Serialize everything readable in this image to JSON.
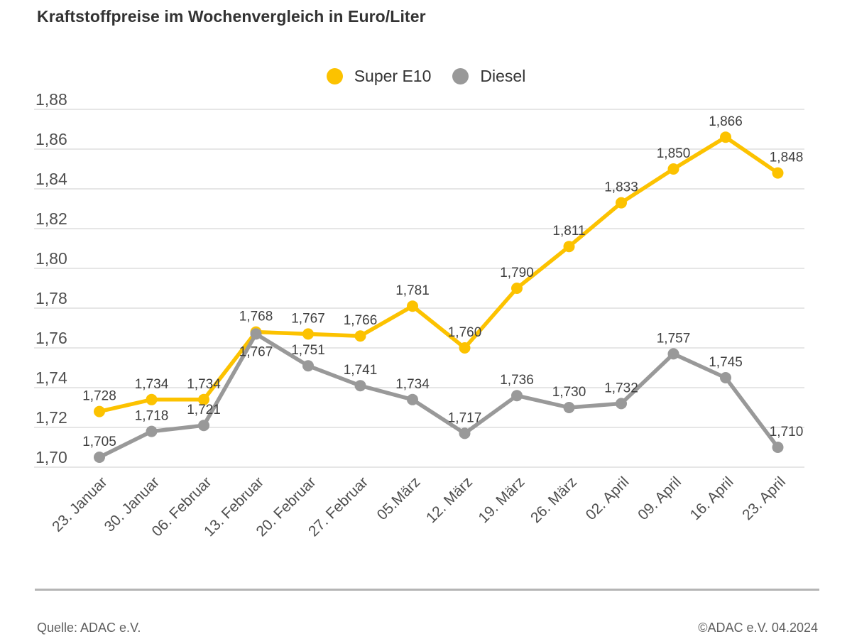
{
  "title": "Kraftstoffpreise im Wochenvergleich in Euro/Liter",
  "legend": {
    "items": [
      {
        "label": "Super E10",
        "color": "#FCC200"
      },
      {
        "label": "Diesel",
        "color": "#999999"
      }
    ]
  },
  "chart_data": {
    "type": "line",
    "title": "Kraftstoffpreise im Wochenvergleich in Euro/Liter",
    "unit": "Euro/Liter",
    "categories": [
      "23. Januar",
      "30. Januar",
      "06. Februar",
      "13. Februar",
      "20. Februar",
      "27. Februar",
      "05.März",
      "12. März",
      "19. März",
      "26. März",
      "02. April",
      "09. April",
      "16. April",
      "23. April"
    ],
    "series": [
      {
        "name": "Super E10",
        "color": "#FCC200",
        "values": [
          1.728,
          1.734,
          1.734,
          1.768,
          1.767,
          1.766,
          1.781,
          1.76,
          1.79,
          1.811,
          1.833,
          1.85,
          1.866,
          1.848
        ]
      },
      {
        "name": "Diesel",
        "color": "#999999",
        "values": [
          1.705,
          1.718,
          1.721,
          1.767,
          1.751,
          1.741,
          1.734,
          1.717,
          1.736,
          1.73,
          1.732,
          1.757,
          1.745,
          1.71
        ]
      }
    ],
    "ylim": [
      1.7,
      1.88
    ],
    "ytick_step": 0.02,
    "yticklabels": [
      "1,88",
      "1,86",
      "1,84",
      "1,82",
      "1,80",
      "1,78",
      "1,76",
      "1,74",
      "1,72",
      "1,70"
    ],
    "decimal_separator": ",",
    "grid": true,
    "legend_position": "top-center",
    "point_labels": true,
    "label_below_overrides": {
      "Diesel": [
        3
      ]
    }
  },
  "colors": {
    "grid": "#cccccc",
    "axis_text": "#4f4f4f",
    "point_label_text": "#3f3f3f",
    "title_text": "#333333",
    "divider": "#b5b5b5",
    "footer_text": "#5f5f5f"
  },
  "footer": {
    "source": "Quelle: ADAC e.V.",
    "copyright": "©ADAC e.V. 04.2024"
  }
}
